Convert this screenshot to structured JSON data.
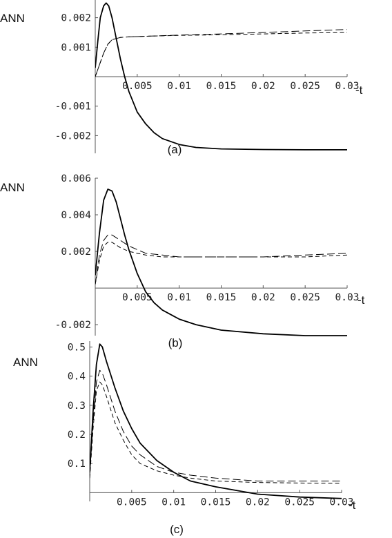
{
  "chart_data": [
    {
      "type": "line",
      "panel_label": "(a)",
      "ylabel": "ANN",
      "xlabel": "-t",
      "xlim": [
        0,
        0.03
      ],
      "ylim": [
        -0.0026,
        0.0026
      ],
      "x_ticks": [
        "0.005",
        "0.01",
        "0.015",
        "0.02",
        "0.025",
        "0.03"
      ],
      "y_ticks": [
        "0.002",
        "0.001",
        "-0.001",
        "-0.002"
      ],
      "y_tick_values": [
        0.002,
        0.001,
        -0.001,
        -0.002
      ],
      "grid": false,
      "series": [
        {
          "style": "solid",
          "x": [
            0,
            0.0003,
            0.0006,
            0.001,
            0.0013,
            0.0016,
            0.002,
            0.0025,
            0.003,
            0.0035,
            0.004,
            0.005,
            0.006,
            0.007,
            0.008,
            0.01,
            0.012,
            0.015,
            0.02,
            0.025,
            0.03
          ],
          "y": [
            0.0003,
            0.0012,
            0.002,
            0.0024,
            0.0025,
            0.0024,
            0.002,
            0.0013,
            0.0006,
            0.0,
            -0.0005,
            -0.0012,
            -0.0016,
            -0.0019,
            -0.0021,
            -0.0023,
            -0.0024,
            -0.00245,
            -0.00247,
            -0.00248,
            -0.00248
          ]
        },
        {
          "style": "long-dash",
          "x": [
            0,
            0.0005,
            0.001,
            0.0015,
            0.002,
            0.003,
            0.004,
            0.006,
            0.01,
            0.015,
            0.02,
            0.025,
            0.03
          ],
          "y": [
            0.0,
            0.0004,
            0.0008,
            0.0011,
            0.00125,
            0.00133,
            0.00135,
            0.00137,
            0.00141,
            0.00145,
            0.0015,
            0.00155,
            0.0016
          ]
        },
        {
          "style": "short-dash",
          "x": [
            0,
            0.0005,
            0.001,
            0.0015,
            0.002,
            0.003,
            0.004,
            0.006,
            0.01,
            0.015,
            0.02,
            0.025,
            0.03
          ],
          "y": [
            0.0,
            0.0004,
            0.0008,
            0.0011,
            0.00125,
            0.00133,
            0.00135,
            0.00137,
            0.0014,
            0.00142,
            0.00145,
            0.00148,
            0.0015
          ]
        }
      ]
    },
    {
      "type": "line",
      "panel_label": "(b)",
      "ylabel": "ANN",
      "xlabel": "-t",
      "xlim": [
        0,
        0.03
      ],
      "ylim": [
        -0.0026,
        0.006
      ],
      "x_ticks": [
        "0.005",
        "0.01",
        "0.015",
        "0.02",
        "0.025",
        "0.03"
      ],
      "y_ticks": [
        "0.006",
        "0.004",
        "0.002",
        "-0.002"
      ],
      "y_tick_values": [
        0.006,
        0.004,
        0.002,
        -0.002
      ],
      "grid": false,
      "series": [
        {
          "style": "solid",
          "x": [
            0,
            0.0005,
            0.001,
            0.0015,
            0.002,
            0.0025,
            0.003,
            0.0035,
            0.004,
            0.005,
            0.006,
            0.007,
            0.008,
            0.01,
            0.012,
            0.015,
            0.02,
            0.025,
            0.03
          ],
          "y": [
            0.0007,
            0.003,
            0.0048,
            0.0054,
            0.0053,
            0.0047,
            0.0038,
            0.0029,
            0.0021,
            0.0008,
            -0.0002,
            -0.0008,
            -0.0012,
            -0.0017,
            -0.002,
            -0.0023,
            -0.0025,
            -0.0026,
            -0.0026
          ]
        },
        {
          "style": "long-dash",
          "x": [
            0,
            0.0005,
            0.001,
            0.0015,
            0.002,
            0.003,
            0.004,
            0.005,
            0.006,
            0.008,
            0.01,
            0.015,
            0.02,
            0.025,
            0.03
          ],
          "y": [
            0.0002,
            0.0018,
            0.0026,
            0.0029,
            0.0029,
            0.0026,
            0.0023,
            0.0021,
            0.0019,
            0.0018,
            0.0017,
            0.0017,
            0.0017,
            0.0018,
            0.0019
          ]
        },
        {
          "style": "short-dash",
          "x": [
            0,
            0.0005,
            0.001,
            0.0015,
            0.002,
            0.003,
            0.004,
            0.005,
            0.006,
            0.008,
            0.01,
            0.015,
            0.02,
            0.025,
            0.03
          ],
          "y": [
            0.0002,
            0.0015,
            0.0023,
            0.0025,
            0.0025,
            0.0022,
            0.002,
            0.0019,
            0.0018,
            0.0017,
            0.0017,
            0.0017,
            0.0017,
            0.0017,
            0.0018
          ]
        }
      ]
    },
    {
      "type": "line",
      "panel_label": "(c)",
      "ylabel": "ANN",
      "xlabel": "-t",
      "xlim": [
        0,
        0.03
      ],
      "ylim": [
        -0.03,
        0.52
      ],
      "x_ticks": [
        "0.005",
        "0.01",
        "0.015",
        "0.02",
        "0.025",
        "0.03"
      ],
      "y_ticks": [
        "0.5",
        "0.4",
        "0.3",
        "0.2",
        "0.1"
      ],
      "y_tick_values": [
        0.5,
        0.4,
        0.3,
        0.2,
        0.1
      ],
      "grid": false,
      "series": [
        {
          "style": "solid",
          "x": [
            0,
            0.0004,
            0.0008,
            0.0012,
            0.0015,
            0.002,
            0.003,
            0.004,
            0.005,
            0.006,
            0.008,
            0.01,
            0.012,
            0.015,
            0.02,
            0.025,
            0.03
          ],
          "y": [
            0.07,
            0.28,
            0.44,
            0.51,
            0.5,
            0.45,
            0.36,
            0.28,
            0.22,
            0.17,
            0.11,
            0.07,
            0.04,
            0.02,
            -0.005,
            -0.015,
            -0.02
          ]
        },
        {
          "style": "long-dash",
          "x": [
            0,
            0.0004,
            0.0008,
            0.0012,
            0.0015,
            0.002,
            0.003,
            0.004,
            0.005,
            0.006,
            0.008,
            0.01,
            0.012,
            0.015,
            0.02,
            0.025,
            0.03
          ],
          "y": [
            0.06,
            0.24,
            0.38,
            0.42,
            0.41,
            0.37,
            0.28,
            0.21,
            0.16,
            0.13,
            0.09,
            0.07,
            0.06,
            0.05,
            0.04,
            0.04,
            0.04
          ]
        },
        {
          "style": "short-dash",
          "x": [
            0,
            0.0004,
            0.0008,
            0.0012,
            0.0015,
            0.002,
            0.003,
            0.004,
            0.005,
            0.006,
            0.008,
            0.01,
            0.012,
            0.015,
            0.02,
            0.025,
            0.03
          ],
          "y": [
            0.05,
            0.22,
            0.35,
            0.38,
            0.37,
            0.33,
            0.24,
            0.18,
            0.13,
            0.1,
            0.075,
            0.06,
            0.05,
            0.04,
            0.035,
            0.033,
            0.032
          ]
        }
      ]
    }
  ]
}
